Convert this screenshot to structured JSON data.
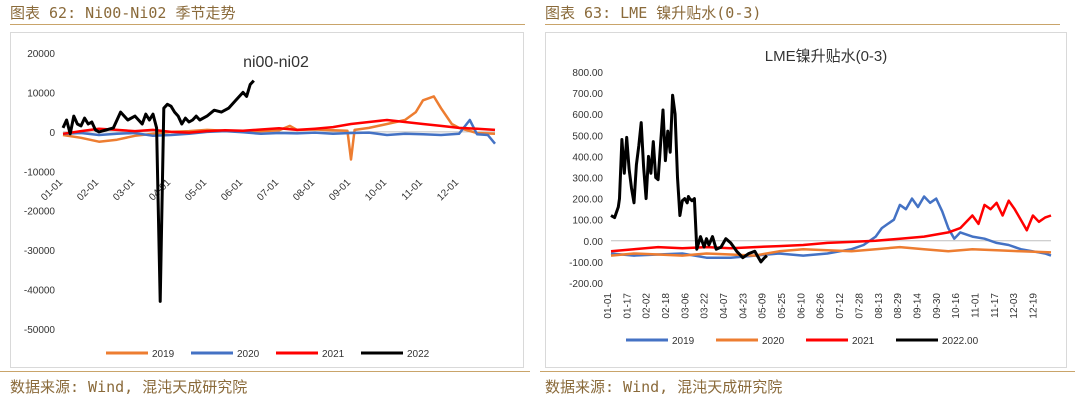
{
  "figures": {
    "left": {
      "caption": "图表 62: Ni00-Ni02 季节走势",
      "source": "数据来源: Wind, 混沌天成研究院"
    },
    "right": {
      "caption": "图表 63: LME 镍升贴水(0-3)",
      "source": "数据来源: Wind, 混沌天成研究院"
    }
  },
  "colors": {
    "s2019": "#ed7d31",
    "s2020": "#4472c4",
    "s2021": "#ff0000",
    "s2022": "#000000"
  },
  "chart_data": [
    {
      "type": "line",
      "title": "ni00-ni02",
      "ylim": [
        -50000,
        20000
      ],
      "yticks": [
        "20000",
        "10000",
        "0",
        "-10000",
        "-20000",
        "-30000",
        "-40000",
        "-50000"
      ],
      "xticks": [
        "01-01",
        "02-01",
        "03-01",
        "04-01",
        "05-01",
        "06-01",
        "07-01",
        "08-01",
        "09-01",
        "10-01",
        "11-01",
        "12-01"
      ],
      "x_unit": "month",
      "legend": "bottom",
      "series": [
        {
          "name": "2019",
          "color": "#ed7d31",
          "x": [
            0,
            0.5,
            1.0,
            1.5,
            2.0,
            2.5,
            3.0,
            3.5,
            4.0,
            4.5,
            5.0,
            5.5,
            6.0,
            6.3,
            6.5,
            7.0,
            7.5,
            7.9,
            8.0,
            8.1,
            8.5,
            9.0,
            9.5,
            9.8,
            10.0,
            10.3,
            10.5,
            10.8,
            11.0,
            11.5,
            12.0
          ],
          "y": [
            -800,
            -1500,
            -2500,
            -2000,
            -1000,
            -500,
            0,
            200,
            500,
            300,
            0,
            200,
            400,
            1500,
            500,
            600,
            400,
            300,
            -7000,
            500,
            1000,
            2000,
            3000,
            5000,
            8000,
            9000,
            6000,
            2000,
            1000,
            -300,
            -500
          ]
        },
        {
          "name": "2020",
          "color": "#4472c4",
          "x": [
            0,
            0.5,
            1.0,
            1.5,
            2.0,
            2.5,
            3.0,
            3.5,
            4.0,
            4.5,
            5.0,
            5.5,
            6.0,
            6.5,
            7.0,
            7.5,
            8.0,
            8.5,
            9.0,
            9.5,
            10.0,
            10.5,
            11.0,
            11.3,
            11.5,
            11.8,
            12.0
          ],
          "y": [
            -500,
            -300,
            -800,
            -500,
            -300,
            -1000,
            -800,
            -500,
            0,
            200,
            -100,
            -500,
            -300,
            -400,
            -200,
            -500,
            -300,
            -200,
            -800,
            -500,
            -600,
            -800,
            -500,
            3000,
            -600,
            -800,
            -3000
          ]
        },
        {
          "name": "2021",
          "color": "#ff0000",
          "x": [
            0,
            0.5,
            1.0,
            1.5,
            2.0,
            2.5,
            3.0,
            3.5,
            4.0,
            4.5,
            5.0,
            5.5,
            6.0,
            6.5,
            7.0,
            7.5,
            8.0,
            8.5,
            9.0,
            9.5,
            10.0,
            10.5,
            11.0,
            11.5,
            12.0
          ],
          "y": [
            -500,
            200,
            800,
            500,
            200,
            500,
            0,
            -200,
            200,
            400,
            300,
            600,
            900,
            500,
            800,
            1200,
            2000,
            2500,
            3000,
            2500,
            2000,
            1500,
            1000,
            800,
            500
          ]
        },
        {
          "name": "2022",
          "color": "#000000",
          "x": [
            0,
            0.1,
            0.2,
            0.3,
            0.4,
            0.5,
            0.6,
            0.7,
            0.8,
            0.9,
            1.0,
            1.2,
            1.4,
            1.6,
            1.8,
            2.0,
            2.2,
            2.3,
            2.4,
            2.5,
            2.6,
            2.7,
            2.8,
            2.9,
            3.0,
            3.1,
            3.2,
            3.3,
            3.4,
            3.5,
            3.6,
            3.7,
            3.8,
            4.0,
            4.2,
            4.4,
            4.6,
            4.8,
            5.0,
            5.1,
            5.2,
            5.3
          ],
          "y": [
            1000,
            3000,
            -500,
            4000,
            2000,
            1500,
            3500,
            2000,
            2500,
            500,
            0,
            500,
            1000,
            5000,
            3000,
            4000,
            2000,
            4500,
            3000,
            4500,
            1000,
            -43000,
            6000,
            7000,
            6500,
            5000,
            4000,
            2000,
            3500,
            2500,
            3000,
            4000,
            3000,
            4000,
            5500,
            5000,
            6000,
            8000,
            10000,
            9000,
            12000,
            13000
          ]
        }
      ]
    },
    {
      "type": "line",
      "title": "LME镍升贴水(0-3)",
      "ylim": [
        -200,
        800
      ],
      "yticks": [
        "800.00",
        "700.00",
        "600.00",
        "500.00",
        "400.00",
        "300.00",
        "200.00",
        "100.00",
        "0.00",
        "-100.00",
        "-200.00"
      ],
      "xticks": [
        "01-01",
        "01-17",
        "02-02",
        "02-18",
        "03-06",
        "03-22",
        "04-07",
        "04-23",
        "05-09",
        "05-25",
        "06-10",
        "06-26",
        "07-12",
        "07-28",
        "08-13",
        "08-29",
        "09-14",
        "09-30",
        "10-16",
        "11-01",
        "11-17",
        "12-03",
        "12-19"
      ],
      "x_unit": "day-of-year",
      "legend": "bottom",
      "series": [
        {
          "name": "2019",
          "color": "#4472c4",
          "x": [
            1,
            20,
            40,
            60,
            80,
            100,
            120,
            140,
            160,
            180,
            200,
            210,
            220,
            225,
            230,
            235,
            240,
            245,
            250,
            255,
            260,
            265,
            270,
            275,
            280,
            285,
            290,
            300,
            310,
            320,
            330,
            340,
            350,
            360,
            365
          ],
          "y": [
            -60,
            -70,
            -65,
            -60,
            -80,
            -80,
            -70,
            -60,
            -70,
            -60,
            -40,
            -20,
            20,
            60,
            80,
            100,
            170,
            150,
            200,
            160,
            210,
            180,
            200,
            140,
            60,
            10,
            40,
            20,
            10,
            -10,
            -20,
            -40,
            -50,
            -60,
            -70
          ]
        },
        {
          "name": "2020",
          "color": "#ed7d31",
          "x": [
            1,
            20,
            40,
            60,
            80,
            100,
            120,
            140,
            160,
            180,
            200,
            220,
            240,
            260,
            280,
            300,
            320,
            340,
            365
          ],
          "y": [
            -70,
            -60,
            -65,
            -70,
            -60,
            -65,
            -70,
            -50,
            -40,
            -45,
            -50,
            -40,
            -30,
            -40,
            -50,
            -40,
            -45,
            -50,
            -55
          ]
        },
        {
          "name": "2021",
          "color": "#ff0000",
          "x": [
            1,
            20,
            40,
            60,
            80,
            100,
            120,
            140,
            160,
            180,
            200,
            220,
            240,
            260,
            280,
            290,
            300,
            305,
            310,
            315,
            320,
            325,
            330,
            335,
            340,
            345,
            350,
            355,
            360,
            365
          ],
          "y": [
            -50,
            -40,
            -30,
            -35,
            -30,
            -35,
            -30,
            -25,
            -20,
            -10,
            -5,
            0,
            10,
            20,
            40,
            60,
            120,
            80,
            170,
            150,
            180,
            120,
            190,
            150,
            100,
            50,
            120,
            90,
            110,
            120
          ]
        },
        {
          "name": "2022.00",
          "color": "#000000",
          "x": [
            1,
            4,
            7,
            8,
            10,
            12,
            14,
            16,
            18,
            20,
            22,
            24,
            26,
            28,
            30,
            32,
            34,
            36,
            38,
            40,
            42,
            44,
            46,
            48,
            50,
            52,
            54,
            56,
            58,
            60,
            62,
            64,
            65,
            66,
            68,
            70,
            72,
            75,
            78,
            80,
            82,
            85,
            88,
            92,
            96,
            100,
            105,
            110,
            115,
            120,
            125,
            128,
            130
          ],
          "y": [
            120,
            110,
            160,
            200,
            480,
            320,
            490,
            340,
            250,
            180,
            360,
            450,
            560,
            350,
            200,
            400,
            320,
            470,
            300,
            290,
            460,
            620,
            380,
            520,
            420,
            690,
            600,
            300,
            120,
            190,
            200,
            180,
            210,
            200,
            190,
            200,
            -40,
            20,
            -30,
            10,
            -20,
            20,
            -40,
            -30,
            10,
            -10,
            -50,
            -80,
            -60,
            -50,
            -100,
            -80,
            -70
          ]
        }
      ]
    }
  ]
}
